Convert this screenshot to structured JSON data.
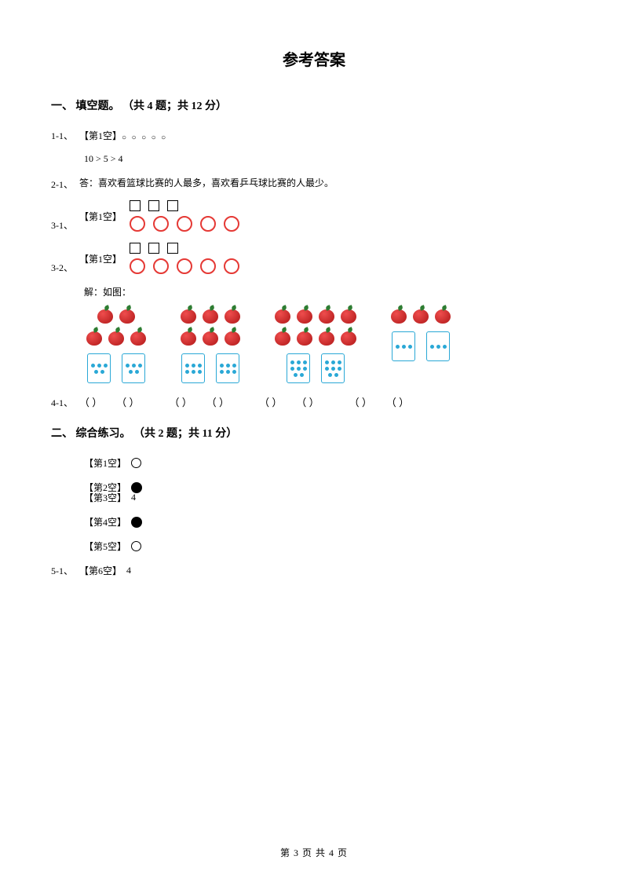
{
  "title": "参考答案",
  "section1": {
    "heading": "一、 填空题。 （共 4 题；共 12 分）",
    "q1": {
      "tag": "1-1、",
      "blank_label": "【第1空】",
      "circles": "○ ○ ○ ○ ○",
      "line2": "10 > 5 > 4"
    },
    "q2": {
      "tag": "2-1、",
      "text": "答：喜欢看篮球比赛的人最多，喜欢看乒乓球比赛的人最少。"
    },
    "q3_1": {
      "tag": "3-1、",
      "blank_label": "【第1空】",
      "squares": 3,
      "circles": 5,
      "square_color": "#000000",
      "circle_color": "#e53935"
    },
    "q3_2": {
      "tag": "3-2、",
      "blank_label": "【第1空】",
      "squares": 3,
      "circles": 5,
      "square_color": "#000000",
      "circle_color": "#e53935"
    },
    "q4": {
      "tag": "4-1、",
      "caption": "解：如图：",
      "groups": [
        {
          "row1": 2,
          "row2": 3,
          "dice": [
            5,
            5
          ]
        },
        {
          "row1": 3,
          "row2": 3,
          "dice": [
            6,
            6
          ]
        },
        {
          "row1": 4,
          "row2": 4,
          "dice": [
            8,
            8
          ]
        },
        {
          "row1": 0,
          "row2": 3,
          "dice": [
            3,
            3
          ]
        }
      ],
      "paren": "（      ）",
      "apple_color": "#b01818",
      "dice_border": "#2aa8d6"
    }
  },
  "section2": {
    "heading": "二、 综合练习。 （共 2 题；共 11 分）",
    "q5": {
      "tag": "5-1、",
      "items": [
        {
          "label": "【第1空】",
          "type": "open"
        },
        {
          "label": "【第2空】",
          "type": "fill"
        },
        {
          "label": "【第3空】",
          "type": "text",
          "value": "4"
        },
        {
          "label": "【第4空】",
          "type": "fill"
        },
        {
          "label": "【第5空】",
          "type": "open"
        },
        {
          "label": "【第6空】",
          "type": "text",
          "value": "4"
        }
      ]
    }
  },
  "footer": "第 3 页 共 4 页"
}
